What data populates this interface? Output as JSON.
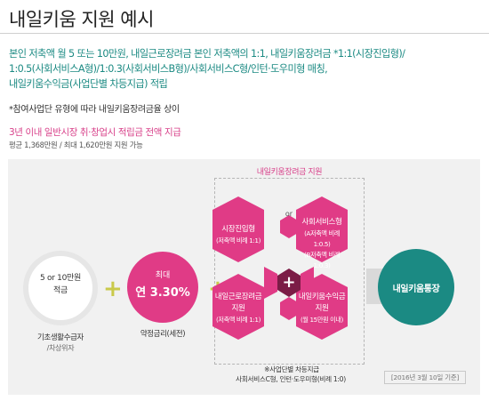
{
  "page": {
    "title": "내일키움 지원 예시",
    "intro_lines": [
      "본인 저축액 월 5 또는 10만원, 내일근로장려금 본인 저축액의 1:1, 내일키움장려금 *1:1(시장진입형)/",
      "1:0.5(사회서비스A형)/1:0.3(사회서비스B형)/사회서비스C형/인턴·도우미형 매칭,",
      "내일키움수익금(사업단별 차등지급) 적립"
    ],
    "note": "*참여사업단 유형에 따라 내일키움장려금율 상이",
    "highlight": "3년 이내 일반시장 취·창업시 적립금 전액 지급",
    "average": "평균 1,368만원 / 최대 1,620만원 지원 가능"
  },
  "diagram": {
    "savings": {
      "line1": "5 or 10만원",
      "line2": "적금",
      "caption1": "기초생활수급자",
      "caption2": "/차상위자"
    },
    "interest": {
      "small": "최대",
      "prefix": "연",
      "value": "3.30%",
      "caption": "약정금리(세전)"
    },
    "incentive_box_title": "내일키움장려금 지원",
    "or_label": "or",
    "hex_market": {
      "main": "시장진입형",
      "sub": "(저축액 비례 1:1)"
    },
    "hex_social": {
      "main": "사회서비스형",
      "sub1": "(A저축액 비례 1:0.5)",
      "sub2": "(B저축액 비례 1:0.3)"
    },
    "hex_labor": {
      "main1": "내일근로장려금",
      "main2": "지원",
      "sub": "(저축액 비례 1:1)"
    },
    "hex_profit": {
      "main1": "내일키움수익금",
      "main2": "지원",
      "sub": "(월 15만원 이내)"
    },
    "center_plus": "+",
    "footnote1": "※사업단별 차등지급",
    "footnote2": "사회서비스C형, 인턴·도우미형(비례 1:0)",
    "account": "내일키움통장",
    "date": "[2016년 3월 10일 기준]",
    "colors": {
      "pink": "#e03b86",
      "teal": "#1b8a83",
      "olive": "#c9c94a",
      "dark_center": "#7b1c46"
    }
  }
}
